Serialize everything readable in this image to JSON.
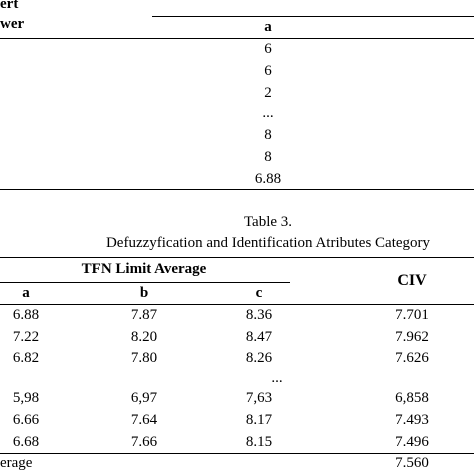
{
  "table_top": {
    "header": {
      "group_line1": "ert",
      "group_line2": "wer",
      "col_a": "a"
    },
    "values": [
      "6",
      "6",
      "2",
      "...",
      "8",
      "8",
      "6.88"
    ]
  },
  "caption": {
    "number": "Table 3.",
    "title": "Defuzzyfication and Identification Atributes Category"
  },
  "table_main": {
    "group_header": "TFN Limit Average",
    "columns": [
      "a",
      "b",
      "c"
    ],
    "civ_header": "CIV",
    "rows": [
      {
        "a": "6.88",
        "b": "7.87",
        "c": "8.36",
        "civ": "7.701"
      },
      {
        "a": "7.22",
        "b": "8.20",
        "c": "8.47",
        "civ": "7.962"
      },
      {
        "a": "6.82",
        "b": "7.80",
        "c": "8.26",
        "civ": "7.626"
      },
      {
        "a": "",
        "b": "",
        "c": "...",
        "civ": ""
      },
      {
        "a": "5,98",
        "b": "6,97",
        "c": "7,63",
        "civ": "6,858"
      },
      {
        "a": "6.66",
        "b": "7.64",
        "c": "8.17",
        "civ": "7.493"
      },
      {
        "a": "6.68",
        "b": "7.66",
        "c": "8.15",
        "civ": "7.496"
      }
    ],
    "footer": {
      "label": "erage",
      "civ": "7.560"
    }
  }
}
